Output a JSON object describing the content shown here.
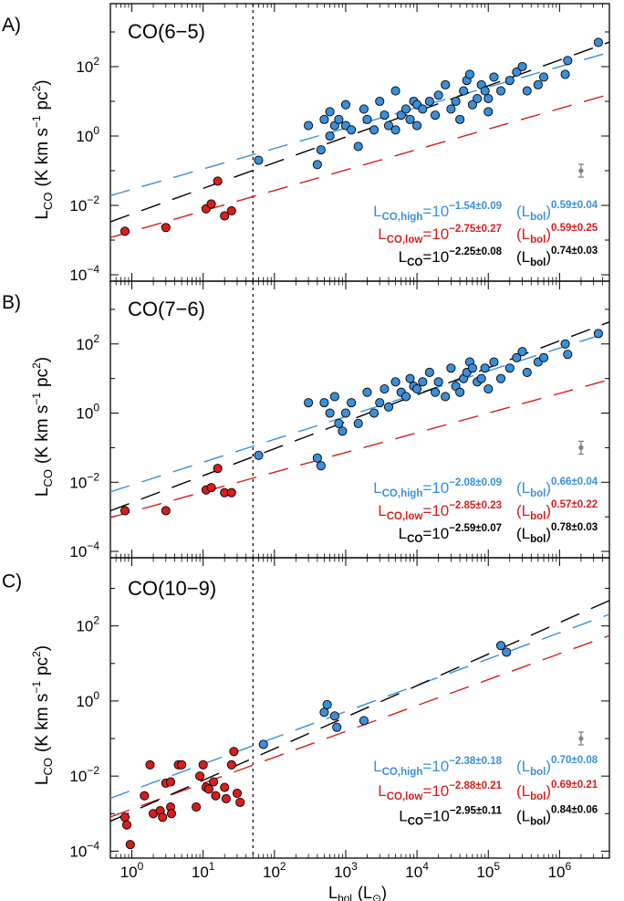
{
  "figure": {
    "xlabel_main": "L",
    "xlabel_sub": "bol",
    "xlabel_unit_open": "(L",
    "xlabel_unit_symbol": "⊙",
    "xlabel_unit_close": ")",
    "ylabel_main": "L",
    "ylabel_sub": "CO",
    "ylabel_unit": "(K km s",
    "ylabel_unit_exp": "−1",
    "ylabel_unit_pc": "pc",
    "ylabel_unit_pc_exp": "2",
    "ylabel_close": ")",
    "x_ticks": [
      {
        "base": "10",
        "exp": "0"
      },
      {
        "base": "10",
        "exp": "1"
      },
      {
        "base": "10",
        "exp": "2"
      },
      {
        "base": "10",
        "exp": "3"
      },
      {
        "base": "10",
        "exp": "4"
      },
      {
        "base": "10",
        "exp": "5"
      },
      {
        "base": "10",
        "exp": "6"
      }
    ],
    "y_ticks": [
      {
        "base": "10",
        "exp": "−4"
      },
      {
        "base": "10",
        "exp": "−2"
      },
      {
        "base": "10",
        "exp": "0"
      },
      {
        "base": "10",
        "exp": "2"
      }
    ],
    "divider_x": 50,
    "errorbar": {
      "x": 2000000,
      "y": 0.1
    },
    "colors": {
      "high": "#3a8fd9",
      "low": "#d81d1d",
      "all": "#000000",
      "errorbar": "#808080"
    }
  },
  "chart_data": [
    {
      "type": "scatter",
      "panel_label": "A)",
      "title": "CO(6−5)",
      "x_scale": "log",
      "y_scale": "log",
      "xlim": [
        0.5,
        5000000
      ],
      "ylim": [
        3e-05,
        5000
      ],
      "series": [
        {
          "group": "high",
          "points": [
            [
              60,
              0.2
            ],
            [
              300,
              2
            ],
            [
              400,
              0.15
            ],
            [
              450,
              0.4
            ],
            [
              500,
              3
            ],
            [
              600,
              5
            ],
            [
              600,
              1
            ],
            [
              700,
              2
            ],
            [
              800,
              3
            ],
            [
              1000,
              8
            ],
            [
              1000,
              2
            ],
            [
              1200,
              1.5
            ],
            [
              1500,
              0.5
            ],
            [
              1800,
              6
            ],
            [
              2000,
              3
            ],
            [
              2500,
              1.5
            ],
            [
              3000,
              10
            ],
            [
              3500,
              4
            ],
            [
              4000,
              2
            ],
            [
              5000,
              20
            ],
            [
              5000,
              1.5
            ],
            [
              6000,
              4
            ],
            [
              7000,
              6
            ],
            [
              8000,
              3
            ],
            [
              9000,
              10
            ],
            [
              10000,
              8
            ],
            [
              10000,
              2
            ],
            [
              12000,
              6
            ],
            [
              15000,
              10
            ],
            [
              18000,
              4
            ],
            [
              20000,
              15
            ],
            [
              25000,
              30
            ],
            [
              30000,
              6
            ],
            [
              35000,
              10
            ],
            [
              40000,
              3
            ],
            [
              45000,
              20
            ],
            [
              50000,
              40
            ],
            [
              55000,
              60
            ],
            [
              60000,
              8
            ],
            [
              70000,
              12
            ],
            [
              80000,
              30
            ],
            [
              90000,
              20
            ],
            [
              100000,
              5
            ],
            [
              100000,
              12
            ],
            [
              120000,
              50
            ],
            [
              150000,
              20
            ],
            [
              200000,
              40
            ],
            [
              250000,
              70
            ],
            [
              300000,
              100
            ],
            [
              350000,
              20
            ],
            [
              500000,
              30
            ],
            [
              600000,
              50
            ],
            [
              1200000,
              60
            ],
            [
              1300000,
              150
            ],
            [
              3500000,
              500
            ]
          ]
        },
        {
          "group": "low",
          "points": [
            [
              0.8,
              0.0018
            ],
            [
              3,
              0.0023
            ],
            [
              11,
              0.008
            ],
            [
              13,
              0.011
            ],
            [
              16,
              0.05
            ],
            [
              20,
              0.005
            ],
            [
              25,
              0.007
            ]
          ]
        }
      ],
      "fits": [
        {
          "group": "high",
          "label_main": "L",
          "label_sub": "CO,high",
          "coef_base": "10",
          "coef_exp": "−1.54±0.09",
          "pow_open": "(L",
          "pow_sub": "bol",
          "pow_close": ")",
          "pow_exp": "0.59±0.04",
          "intercept": -1.54,
          "slope": 0.59
        },
        {
          "group": "low",
          "label_main": "L",
          "label_sub": "CO,low",
          "coef_base": "10",
          "coef_exp": "−2.75±0.27",
          "pow_open": "(L",
          "pow_sub": "bol",
          "pow_close": ")",
          "pow_exp": "0.59±0.25",
          "intercept": -2.75,
          "slope": 0.59
        },
        {
          "group": "all",
          "label_main": "L",
          "label_sub": "CO",
          "coef_base": "10",
          "coef_exp": "−2.25±0.08",
          "pow_open": "(L",
          "pow_sub": "bol",
          "pow_close": ")",
          "pow_exp": "0.74±0.03",
          "intercept": -2.25,
          "slope": 0.74
        }
      ]
    },
    {
      "type": "scatter",
      "panel_label": "B)",
      "title": "CO(7−6)",
      "x_scale": "log",
      "y_scale": "log",
      "xlim": [
        0.5,
        5000000
      ],
      "ylim": [
        3e-05,
        5000
      ],
      "series": [
        {
          "group": "high",
          "points": [
            [
              60,
              0.06
            ],
            [
              300,
              2
            ],
            [
              400,
              0.05
            ],
            [
              450,
              0.03
            ],
            [
              500,
              2
            ],
            [
              600,
              1
            ],
            [
              700,
              3
            ],
            [
              800,
              0.5
            ],
            [
              900,
              0.3
            ],
            [
              1000,
              1
            ],
            [
              1200,
              2
            ],
            [
              1500,
              0.5
            ],
            [
              2000,
              4
            ],
            [
              2500,
              1
            ],
            [
              3000,
              2
            ],
            [
              3500,
              5
            ],
            [
              4000,
              1.5
            ],
            [
              5000,
              8
            ],
            [
              6000,
              4
            ],
            [
              7000,
              3
            ],
            [
              8000,
              10
            ],
            [
              9000,
              6
            ],
            [
              10000,
              5
            ],
            [
              12000,
              8
            ],
            [
              15000,
              15
            ],
            [
              18000,
              4
            ],
            [
              20000,
              8
            ],
            [
              25000,
              3
            ],
            [
              30000,
              20
            ],
            [
              35000,
              6
            ],
            [
              40000,
              4
            ],
            [
              45000,
              10
            ],
            [
              50000,
              15
            ],
            [
              55000,
              30
            ],
            [
              60000,
              20
            ],
            [
              70000,
              8
            ],
            [
              80000,
              10
            ],
            [
              90000,
              20
            ],
            [
              100000,
              5
            ],
            [
              120000,
              30
            ],
            [
              150000,
              10
            ],
            [
              200000,
              20
            ],
            [
              250000,
              40
            ],
            [
              300000,
              60
            ],
            [
              350000,
              15
            ],
            [
              500000,
              30
            ],
            [
              600000,
              40
            ],
            [
              1200000,
              100
            ],
            [
              1300000,
              50
            ],
            [
              3500000,
              200
            ]
          ]
        },
        {
          "group": "low",
          "points": [
            [
              0.8,
              0.0015
            ],
            [
              3,
              0.0015
            ],
            [
              11,
              0.006
            ],
            [
              13,
              0.007
            ],
            [
              16,
              0.025
            ],
            [
              20,
              0.005
            ],
            [
              25,
              0.005
            ]
          ]
        }
      ],
      "fits": [
        {
          "group": "high",
          "label_main": "L",
          "label_sub": "CO,high",
          "coef_base": "10",
          "coef_exp": "−2.08±0.09",
          "pow_open": "(L",
          "pow_sub": "bol",
          "pow_close": ")",
          "pow_exp": "0.66±0.04",
          "intercept": -2.08,
          "slope": 0.66
        },
        {
          "group": "low",
          "label_main": "L",
          "label_sub": "CO,low",
          "coef_base": "10",
          "coef_exp": "−2.85±0.23",
          "pow_open": "(L",
          "pow_sub": "bol",
          "pow_close": ")",
          "pow_exp": "0.57±0.22",
          "intercept": -2.85,
          "slope": 0.57
        },
        {
          "group": "all",
          "label_main": "L",
          "label_sub": "CO",
          "coef_base": "10",
          "coef_exp": "−2.59±0.07",
          "pow_open": "(L",
          "pow_sub": "bol",
          "pow_close": ")",
          "pow_exp": "0.78±0.03",
          "intercept": -2.59,
          "slope": 0.78
        }
      ]
    },
    {
      "type": "scatter",
      "panel_label": "C)",
      "title": "CO(10−9)",
      "x_scale": "log",
      "y_scale": "log",
      "xlim": [
        0.5,
        5000000
      ],
      "ylim": [
        3e-05,
        5000
      ],
      "series": [
        {
          "group": "high",
          "points": [
            [
              70,
              0.07
            ],
            [
              500,
              0.5
            ],
            [
              550,
              0.8
            ],
            [
              700,
              0.4
            ],
            [
              750,
              0.2
            ],
            [
              1800,
              0.3
            ],
            [
              150000,
              30
            ],
            [
              180000,
              20
            ]
          ]
        },
        {
          "group": "low",
          "points": [
            [
              0.8,
              0.0008
            ],
            [
              0.85,
              0.0005
            ],
            [
              0.95,
              0.00015
            ],
            [
              1.5,
              0.003
            ],
            [
              1.8,
              0.02
            ],
            [
              2,
              0.001
            ],
            [
              2.5,
              0.0012
            ],
            [
              2.7,
              0.0008
            ],
            [
              3,
              0.0065
            ],
            [
              3.5,
              0.007
            ],
            [
              3.5,
              0.0015
            ],
            [
              3.6,
              0.001
            ],
            [
              4.5,
              0.02
            ],
            [
              5,
              0.02
            ],
            [
              8,
              0.0015
            ],
            [
              9,
              0.01
            ],
            [
              10,
              0.02
            ],
            [
              11,
              0.005
            ],
            [
              12,
              0.0045
            ],
            [
              14,
              0.007
            ],
            [
              15,
              0.003
            ],
            [
              20,
              0.005
            ],
            [
              21,
              0.0025
            ],
            [
              25,
              0.02
            ],
            [
              27,
              0.045
            ],
            [
              30,
              0.0035
            ],
            [
              33,
              0.002
            ]
          ]
        }
      ],
      "fits": [
        {
          "group": "high",
          "label_main": "L",
          "label_sub": "CO,high",
          "coef_base": "10",
          "coef_exp": "−2.38±0.18",
          "pow_open": "(L",
          "pow_sub": "bol",
          "pow_close": ")",
          "pow_exp": "0.70±0.08",
          "intercept": -2.38,
          "slope": 0.7
        },
        {
          "group": "low",
          "label_main": "L",
          "label_sub": "CO,low",
          "coef_base": "10",
          "coef_exp": "−2.88±0.21",
          "pow_open": "(L",
          "pow_sub": "bol",
          "pow_close": ")",
          "pow_exp": "0.69±0.21",
          "intercept": -2.88,
          "slope": 0.69
        },
        {
          "group": "all",
          "label_main": "L",
          "label_sub": "CO",
          "coef_base": "10",
          "coef_exp": "−2.95±0.11",
          "pow_open": "(L",
          "pow_sub": "bol",
          "pow_close": ")",
          "pow_exp": "0.84±0.06",
          "intercept": -2.95,
          "slope": 0.84
        }
      ]
    }
  ]
}
